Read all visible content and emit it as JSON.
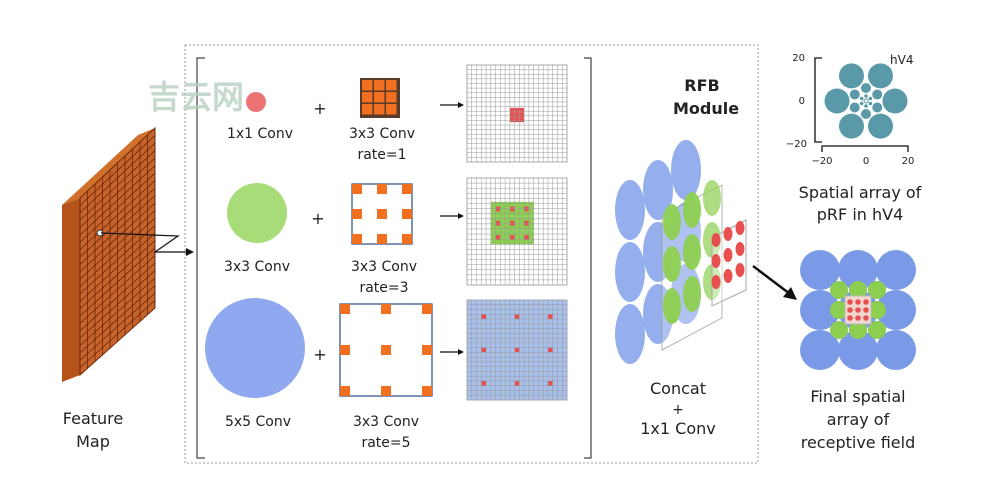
{
  "watermark": "吉云网",
  "feature_map": {
    "line1": "Feature",
    "line2": "Map"
  },
  "rows": [
    {
      "branch": "1x1 Conv",
      "conv": "3x3 Conv",
      "rate": "rate=1",
      "color": "#e85a5a"
    },
    {
      "branch": "3x3 Conv",
      "conv": "3x3 Conv",
      "rate": "rate=3",
      "color": "#a8dc78"
    },
    {
      "branch": "5x5 Conv",
      "conv": "3x3 Conv",
      "rate": "rate=5",
      "color": "#8fa8f0"
    }
  ],
  "plus": "+",
  "module": {
    "line1": "RFB",
    "line2": "Module"
  },
  "concat": {
    "line1": "Concat",
    "plus": "+",
    "line2": "1x1 Conv"
  },
  "prf_plot": {
    "label": "hV4",
    "y_ticks": [
      "20",
      "0",
      "−20"
    ],
    "x_ticks": [
      "−20",
      "0",
      "20"
    ],
    "caption1": "Spatial array of",
    "caption2": "pRF in hV4",
    "color": "#5a9aa8"
  },
  "final": {
    "line1": "Final spatial",
    "line2": "array of",
    "line3": "receptive field"
  },
  "colors": {
    "orange": "#f07020",
    "red": "#e85050",
    "green": "#8ccf50",
    "blue": "#7a9ae8"
  }
}
